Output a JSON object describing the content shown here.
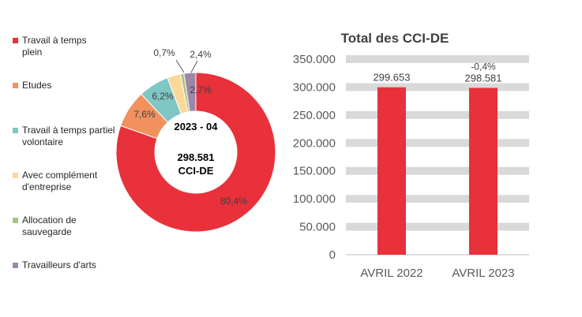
{
  "charts": {
    "donut": {
      "type": "pie",
      "center_title": "2023 - 04",
      "center_value": "298.581",
      "center_unit": "CCI-DE",
      "slices": [
        {
          "name": "Travail à temps plein",
          "value": 80.4,
          "label": "80,4%",
          "color": "#e8313b"
        },
        {
          "name": "Etudes",
          "value": 7.6,
          "label": "7,6%",
          "color": "#f0915e"
        },
        {
          "name": "Travail à temps partiel volontaire",
          "value": 6.2,
          "label": "6,2%",
          "color": "#7fc6c4"
        },
        {
          "name": "Avec complément d'entreprise",
          "value": 2.7,
          "label": "2,7%",
          "color": "#fbd79a"
        },
        {
          "name": "Allocation de sauvegarde",
          "value": 0.7,
          "label": "0,7%",
          "color": "#a5c47f"
        },
        {
          "name": "Travailleurs d'arts",
          "value": 2.4,
          "label": "2,4%",
          "color": "#9e86a8"
        }
      ]
    },
    "bar": {
      "type": "bar",
      "title": "Total des CCI-DE",
      "categories": [
        "AVRIL 2022",
        "AVRIL 2023"
      ],
      "values": [
        299653,
        298581
      ],
      "value_labels": [
        "299.653",
        "298.581"
      ],
      "change_label": "-0,4%",
      "ylim": [
        0,
        350000
      ],
      "yticks": [
        0,
        50000,
        100000,
        150000,
        200000,
        250000,
        300000,
        350000
      ],
      "ytick_labels": [
        "0",
        "50.000",
        "100.000",
        "150.000",
        "200.000",
        "250.000",
        "300.000",
        "350.000"
      ],
      "bar_color": "#e8313b",
      "grid_color": "#d9d9d9"
    }
  },
  "legend": {
    "items": [
      {
        "label": "Travail à temps plein",
        "color": "#e8313b"
      },
      {
        "label": "Etudes",
        "color": "#f0915e"
      },
      {
        "label": "Travail à temps partiel volontaire",
        "color": "#7fc6c4"
      },
      {
        "label": "Avec complément d'entreprise",
        "color": "#fbd79a"
      },
      {
        "label": "Allocation de sauvegarde",
        "color": "#a5c47f"
      },
      {
        "label": "Travailleurs d'arts",
        "color": "#9e86a8"
      }
    ]
  }
}
